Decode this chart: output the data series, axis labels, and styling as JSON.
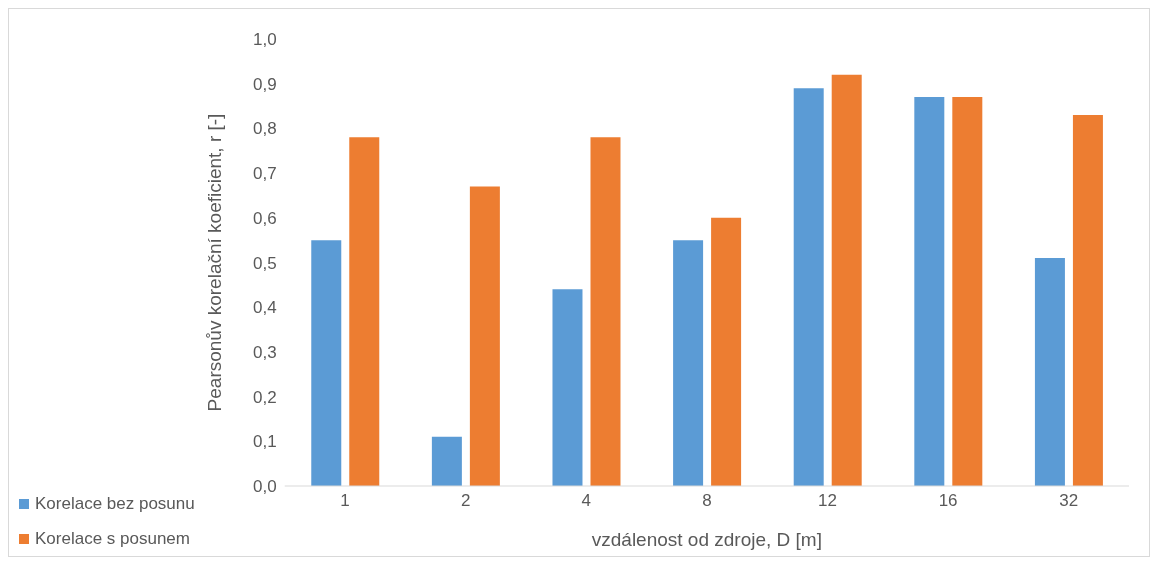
{
  "chart_data": {
    "type": "bar",
    "xlabel": "vzdálenost od zdroje, D [m]",
    "ylabel": "Pearsonův korelační koeficient, r [-]",
    "categories": [
      "1",
      "2",
      "4",
      "8",
      "12",
      "16",
      "32"
    ],
    "series": [
      {
        "name": "Korelace bez posunu",
        "color": "#5b9bd5",
        "values": [
          0.55,
          0.11,
          0.44,
          0.55,
          0.89,
          0.87,
          0.51
        ]
      },
      {
        "name": "Korelace s posunem",
        "color": "#ed7d31",
        "values": [
          0.78,
          0.67,
          0.78,
          0.6,
          0.92,
          0.87,
          0.83
        ]
      }
    ],
    "ylim": [
      0,
      1
    ],
    "yticks": [
      {
        "value": 0,
        "label": "0,0"
      },
      {
        "value": 0.1,
        "label": "0,1"
      },
      {
        "value": 0.2,
        "label": "0,2"
      },
      {
        "value": 0.3,
        "label": "0,3"
      },
      {
        "value": 0.4,
        "label": "0,4"
      },
      {
        "value": 0.5,
        "label": "0,5"
      },
      {
        "value": 0.6,
        "label": "0,6"
      },
      {
        "value": 0.7,
        "label": "0,7"
      },
      {
        "value": 0.8,
        "label": "0,8"
      },
      {
        "value": 0.9,
        "label": "0,9"
      },
      {
        "value": 1,
        "label": "1,0"
      }
    ],
    "grid": false,
    "legend": "bottom left"
  }
}
